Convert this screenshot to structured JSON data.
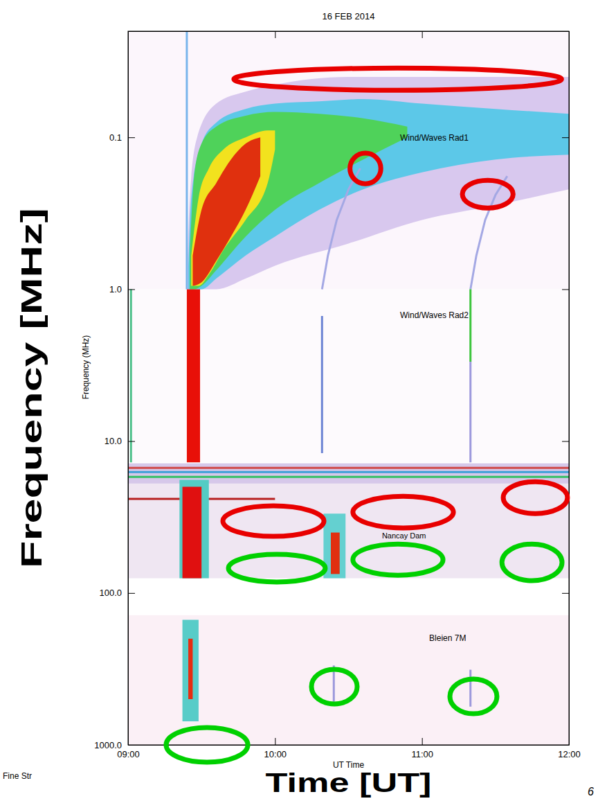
{
  "chart_data": {
    "type": "spectrogram",
    "title": "16 FEB 2014",
    "x_label": "Time [UT]",
    "x_label_inner": "UT Time",
    "y_label": "Frequency [MHz]",
    "y_label_inner": "Frequency (MHz)",
    "footer": "Fine Str",
    "page": "6",
    "log": "y",
    "grid": false,
    "xlim": [
      9,
      12
    ],
    "xticks": [
      {
        "value": 9,
        "label": "09:00"
      },
      {
        "value": 10,
        "label": "10:00"
      },
      {
        "value": 11,
        "label": "11:00"
      },
      {
        "value": 12,
        "label": "12:00"
      }
    ],
    "ylim": [
      1000,
      0.02
    ],
    "yticks": [
      0.1,
      {
        "value": 1,
        "label": "1.0"
      },
      {
        "value": 10,
        "label": "10.0"
      },
      {
        "value": 100,
        "label": "100.0"
      },
      {
        "value": 1000,
        "label": "1000.0"
      }
    ],
    "panels": [
      {
        "label": "Wind/Waves Rad1",
        "freq_range": [
          0.02,
          1.0
        ],
        "color": "#fcf6fc"
      },
      {
        "label": "Wind/Waves Rad2",
        "freq_range": [
          1.0,
          13.8
        ],
        "color": "#fdfafd"
      },
      {
        "label": "Nancay Dam",
        "freq_range": [
          14,
          80
        ],
        "color": "#efe6f2"
      },
      {
        "label": "Bleien 7M",
        "freq_range": [
          140,
          1000
        ],
        "color": "#fbf0f6"
      }
    ],
    "series": [
      {
        "type": "area",
        "color": "#d8c8ee",
        "x": [
          9.4,
          9.42,
          9.47,
          9.6,
          9.8,
          10.0,
          10.5,
          11.0,
          11.5,
          12.0
        ],
        "low": [
          0.9,
          0.25,
          0.1,
          0.06,
          0.05,
          0.045,
          0.04,
          0.04,
          0.04,
          0.04
        ],
        "high": [
          1.0,
          1.0,
          1.0,
          1.0,
          0.85,
          0.7,
          0.5,
          0.35,
          0.28,
          0.22
        ]
      },
      {
        "type": "area",
        "color": "#5cc8e8",
        "x": [
          9.41,
          9.43,
          9.5,
          9.6,
          9.8,
          10.0,
          10.3,
          10.6,
          11.0,
          11.5,
          12.0
        ],
        "low": [
          0.7,
          0.25,
          0.11,
          0.08,
          0.065,
          0.06,
          0.058,
          0.056,
          0.06,
          0.065,
          0.07
        ],
        "high": [
          1.0,
          1.0,
          1.0,
          0.85,
          0.6,
          0.45,
          0.3,
          0.22,
          0.17,
          0.14,
          0.13
        ]
      },
      {
        "type": "area",
        "color": "#4fd25a",
        "x": [
          9.42,
          9.45,
          9.5,
          9.6,
          9.8,
          10.0,
          10.3,
          10.6,
          10.9
        ],
        "low": [
          0.6,
          0.18,
          0.11,
          0.085,
          0.072,
          0.068,
          0.07,
          0.075,
          0.085
        ],
        "high": [
          1.0,
          1.0,
          0.95,
          0.75,
          0.45,
          0.3,
          0.2,
          0.14,
          0.1
        ]
      },
      {
        "type": "area",
        "color": "#f2e21e",
        "x": [
          9.43,
          9.48,
          9.55,
          9.65,
          9.8,
          9.95,
          10.0
        ],
        "low": [
          0.6,
          0.25,
          0.16,
          0.12,
          0.1,
          0.09,
          0.09
        ],
        "high": [
          0.95,
          0.95,
          0.8,
          0.55,
          0.35,
          0.2,
          0.12
        ]
      },
      {
        "type": "area",
        "color": "#e0300e",
        "x": [
          9.44,
          9.5,
          9.6,
          9.7,
          9.8,
          9.9
        ],
        "low": [
          0.6,
          0.3,
          0.2,
          0.14,
          0.11,
          0.1
        ],
        "high": [
          0.95,
          0.9,
          0.65,
          0.45,
          0.3,
          0.18
        ]
      },
      {
        "type": "line",
        "color": "#78b4ec",
        "x": [
          9.4,
          9.4
        ],
        "values": [
          0.02,
          1.0
        ]
      },
      {
        "type": "line",
        "color": "#a4a8e4",
        "x": [
          10.32,
          10.36,
          10.42,
          10.5,
          10.58
        ],
        "values": [
          1.0,
          0.6,
          0.35,
          0.22,
          0.16
        ]
      },
      {
        "type": "line",
        "color": "#a4a8e4",
        "x": [
          11.33,
          11.37,
          11.43,
          11.5,
          11.58
        ],
        "values": [
          1.0,
          0.6,
          0.35,
          0.24,
          0.18
        ]
      },
      {
        "type": "area",
        "color": "#e81008",
        "x": [
          9.4,
          9.49
        ],
        "low": [
          1.0,
          1.0
        ],
        "high": [
          13.8,
          13.8
        ]
      },
      {
        "type": "line",
        "color": "#4cc08a",
        "x": [
          9.02,
          9.02
        ],
        "values": [
          1.0,
          13.8
        ]
      },
      {
        "type": "line",
        "color": "#6c84d4",
        "x": [
          10.32,
          10.32
        ],
        "values": [
          1.5,
          12
        ]
      },
      {
        "type": "line",
        "color": "#3cc43c",
        "x": [
          11.33,
          11.33
        ],
        "values": [
          1.0,
          3.0
        ]
      },
      {
        "type": "line",
        "color": "#9c98dc",
        "x": [
          11.33,
          11.33
        ],
        "values": [
          3.0,
          13.8
        ]
      },
      {
        "type": "area",
        "color": "#d6c8ea",
        "x": [
          9.0,
          12.0
        ],
        "low": [
          14,
          14
        ],
        "high": [
          19,
          19
        ]
      },
      {
        "type": "line",
        "color": "#d04848",
        "x": [
          9.0,
          12.0
        ],
        "values": [
          15,
          15
        ]
      },
      {
        "type": "line",
        "color": "#3ca0d8",
        "x": [
          9.0,
          12.0
        ],
        "values": [
          16,
          16
        ]
      },
      {
        "type": "line",
        "color": "#34c064",
        "x": [
          9.0,
          12.0
        ],
        "values": [
          17.2,
          17.2
        ]
      },
      {
        "type": "line",
        "color": "#b82020",
        "x": [
          9.0,
          10.0
        ],
        "values": [
          24,
          24
        ]
      },
      {
        "type": "area",
        "color": "#54ccc4",
        "x": [
          9.35,
          9.55
        ],
        "low": [
          18,
          18
        ],
        "high": [
          80,
          80
        ]
      },
      {
        "type": "area",
        "color": "#e01010",
        "x": [
          9.37,
          9.5
        ],
        "low": [
          20,
          20
        ],
        "high": [
          80,
          80
        ]
      },
      {
        "type": "area",
        "color": "#64d0d0",
        "x": [
          10.33,
          10.48
        ],
        "low": [
          30,
          30
        ],
        "high": [
          80,
          80
        ]
      },
      {
        "type": "area",
        "color": "#e03010",
        "x": [
          10.38,
          10.44
        ],
        "low": [
          40,
          40
        ],
        "high": [
          75,
          75
        ]
      },
      {
        "type": "area",
        "color": "#58ccc8",
        "x": [
          9.37,
          9.48
        ],
        "low": [
          150,
          150
        ],
        "high": [
          700,
          700
        ]
      },
      {
        "type": "area",
        "color": "#e82c10",
        "x": [
          9.41,
          9.44
        ],
        "low": [
          200,
          200
        ],
        "high": [
          500,
          500
        ]
      },
      {
        "type": "line",
        "color": "#9c98dc",
        "x": [
          10.4,
          10.4
        ],
        "values": [
          300,
          520
        ]
      },
      {
        "type": "line",
        "color": "#9c98dc",
        "x": [
          11.33,
          11.33
        ],
        "values": [
          320,
          560
        ]
      }
    ],
    "annotations": [
      {
        "shape": "ellipse",
        "color": "#e80000",
        "x": [
          9.72,
          11.95
        ],
        "y": [
          0.035,
          0.049
        ]
      },
      {
        "shape": "ellipse",
        "color": "#e80000",
        "x": [
          10.51,
          10.72
        ],
        "y": [
          0.127,
          0.202
        ]
      },
      {
        "shape": "ellipse",
        "color": "#e80000",
        "x": [
          11.275,
          11.62
        ],
        "y": [
          0.192,
          0.292
        ]
      },
      {
        "shape": "ellipse",
        "color": "#e80000",
        "x": [
          9.645,
          10.333
        ],
        "y": [
          26.7,
          42.4
        ]
      },
      {
        "shape": "ellipse",
        "color": "#e80000",
        "x": [
          10.53,
          11.214
        ],
        "y": [
          23.1,
          37.3
        ]
      },
      {
        "shape": "ellipse",
        "color": "#e80000",
        "x": [
          11.553,
          11.99
        ],
        "y": [
          18.5,
          30.0
        ]
      },
      {
        "shape": "ellipse",
        "color": "#00d000",
        "x": [
          9.683,
          10.342
        ],
        "y": [
          55.7,
          84.7
        ]
      },
      {
        "shape": "ellipse",
        "color": "#00d000",
        "x": [
          10.53,
          11.143
        ],
        "y": [
          47.6,
          76.4
        ]
      },
      {
        "shape": "ellipse",
        "color": "#00d000",
        "x": [
          11.544,
          11.953
        ],
        "y": [
          47.6,
          83
        ]
      },
      {
        "shape": "ellipse",
        "color": "#00d000",
        "x": [
          10.248,
          10.559
        ],
        "y": [
          318,
          538
        ]
      },
      {
        "shape": "ellipse",
        "color": "#00d000",
        "x": [
          11.19,
          11.51
        ],
        "y": [
          369,
          624
        ]
      },
      {
        "shape": "ellipse",
        "color": "#00d000",
        "x": [
          9.259,
          9.815
        ],
        "y": [
          769,
          1300
        ]
      }
    ]
  }
}
